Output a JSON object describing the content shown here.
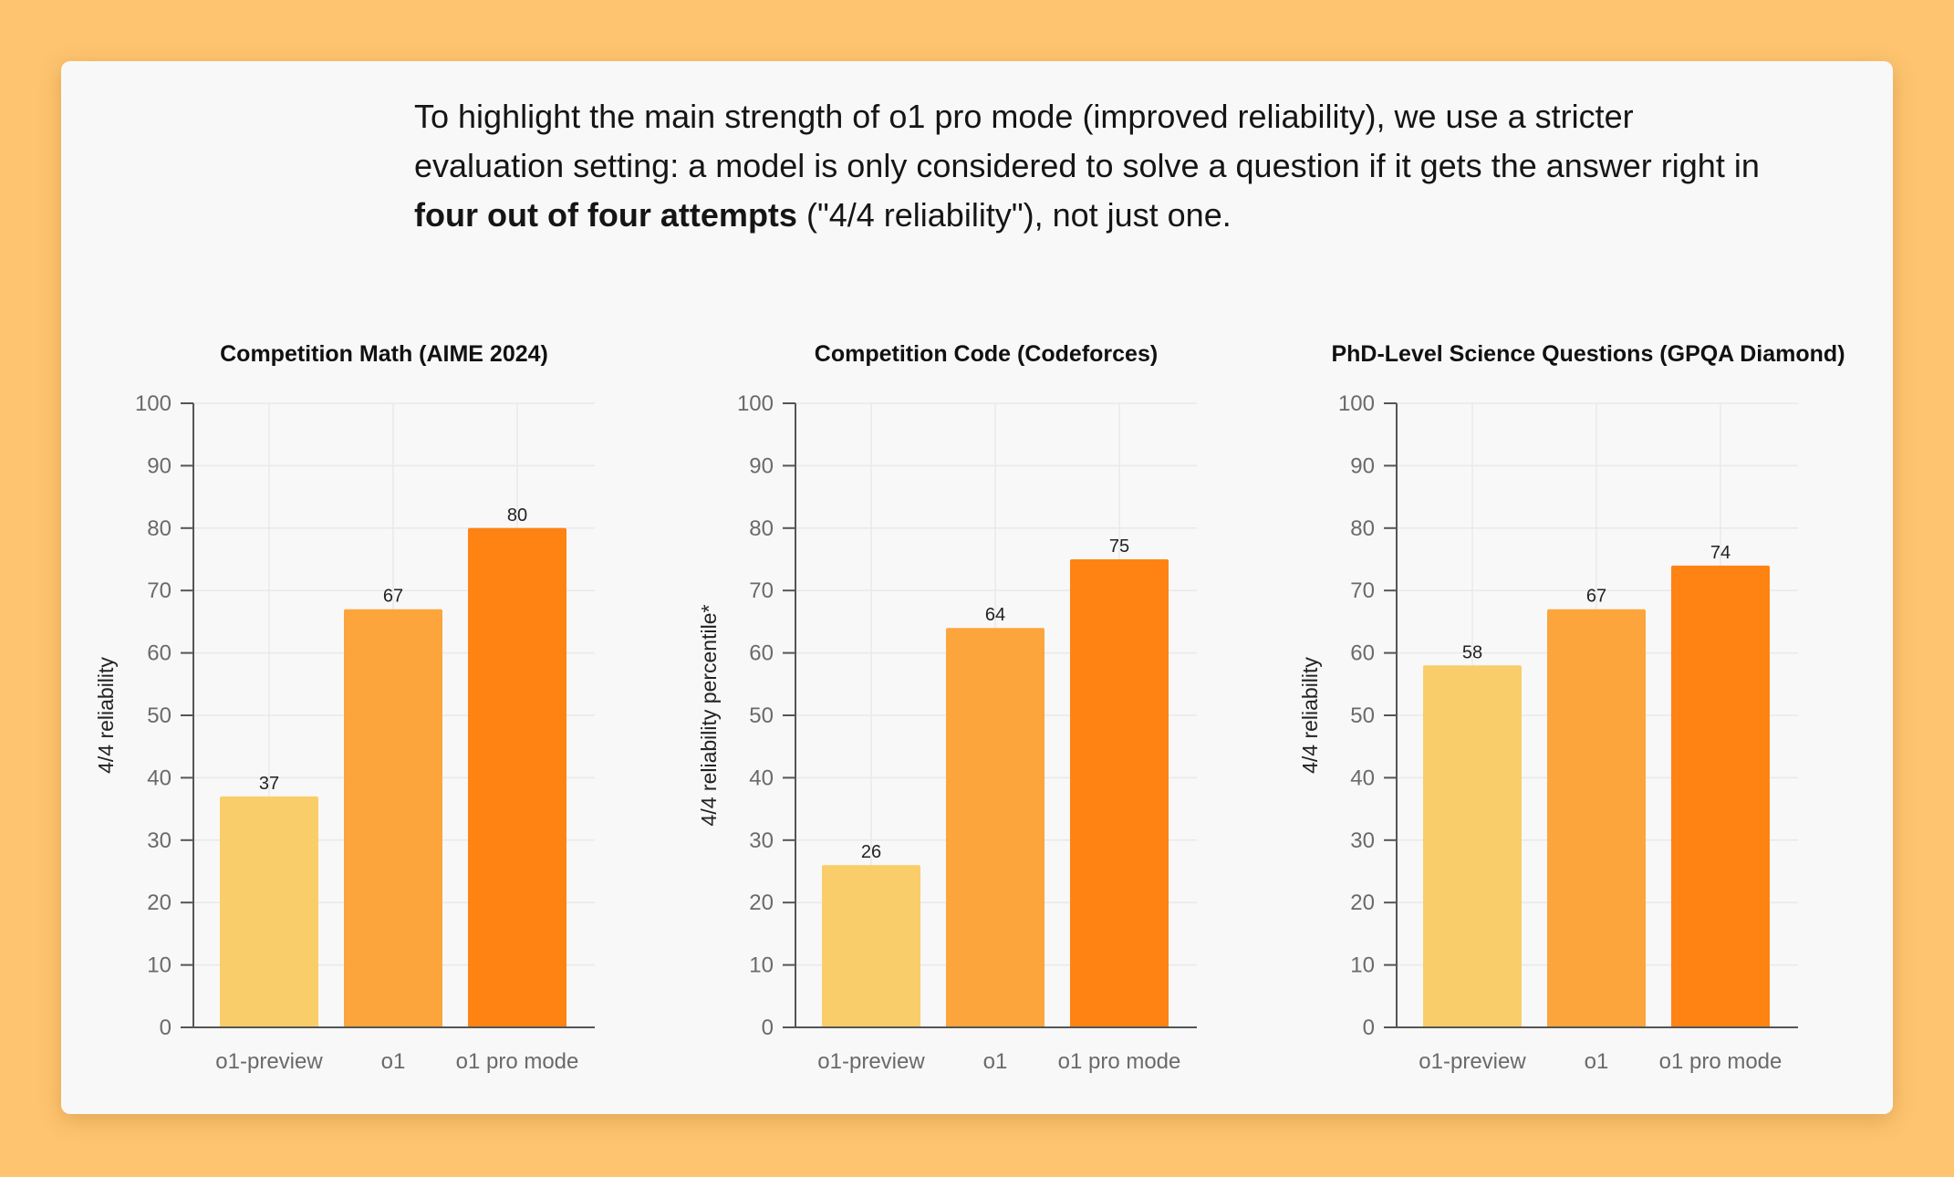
{
  "intro": {
    "line1": "To highlight the main strength of o1 pro mode (improved reliability), we use a stricter evaluation setting: a model is only considered to solve a question if it gets the answer right in ",
    "bold": "four out of four attempts",
    "line2": " (\"4/4 reliability\"), not just one."
  },
  "colors": {
    "o1-preview": "#f9ce6a",
    "o1": "#fca53c",
    "o1 pro mode": "#ff8313"
  },
  "chart_data": [
    {
      "type": "bar",
      "title": "Competition Math (AIME 2024)",
      "ylabel": "4/4 reliability",
      "xlabel": "",
      "categories": [
        "o1-preview",
        "o1",
        "o1 pro mode"
      ],
      "values": [
        37,
        67,
        80
      ],
      "ylim": [
        0,
        100
      ],
      "yticks": [
        0,
        10,
        20,
        30,
        40,
        50,
        60,
        70,
        80,
        90,
        100
      ],
      "grid": true
    },
    {
      "type": "bar",
      "title": "Competition Code (Codeforces)",
      "ylabel": "4/4 reliability percentile*",
      "xlabel": "",
      "categories": [
        "o1-preview",
        "o1",
        "o1 pro mode"
      ],
      "values": [
        26,
        64,
        75
      ],
      "ylim": [
        0,
        100
      ],
      "yticks": [
        0,
        10,
        20,
        30,
        40,
        50,
        60,
        70,
        80,
        90,
        100
      ],
      "grid": true
    },
    {
      "type": "bar",
      "title": "PhD-Level Science Questions (GPQA Diamond)",
      "ylabel": "4/4 reliability",
      "xlabel": "",
      "categories": [
        "o1-preview",
        "o1",
        "o1 pro mode"
      ],
      "values": [
        58,
        67,
        74
      ],
      "ylim": [
        0,
        100
      ],
      "yticks": [
        0,
        10,
        20,
        30,
        40,
        50,
        60,
        70,
        80,
        90,
        100
      ],
      "grid": true
    }
  ]
}
